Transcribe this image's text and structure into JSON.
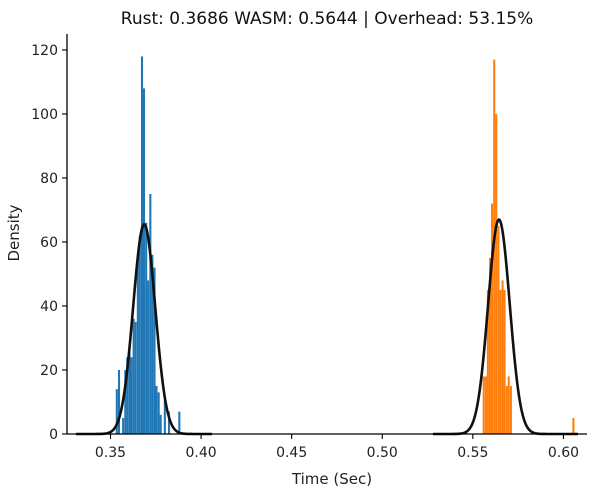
{
  "chart_data": {
    "type": "histogram",
    "title": "Rust: 0.3686 WASM: 0.5644 | Overhead: 53.15%",
    "xlabel": "Time (Sec)",
    "ylabel": "Density",
    "xlim": [
      0.326,
      0.613
    ],
    "ylim": [
      0,
      125
    ],
    "xticks": [
      0.35,
      0.4,
      0.45,
      0.5,
      0.55,
      0.6
    ],
    "xtick_labels": [
      "0.35",
      "0.40",
      "0.45",
      "0.50",
      "0.55",
      "0.60"
    ],
    "yticks": [
      0,
      20,
      40,
      60,
      80,
      100,
      120
    ],
    "ytick_labels": [
      "0",
      "20",
      "40",
      "60",
      "80",
      "100",
      "120"
    ],
    "grid": false,
    "series": [
      {
        "color": "#1f77b4",
        "bin_width": 0.00115,
        "bins": [
          {
            "x": 0.3535,
            "y": 14
          },
          {
            "x": 0.3547,
            "y": 20
          },
          {
            "x": 0.357,
            "y": 5
          },
          {
            "x": 0.3582,
            "y": 20
          },
          {
            "x": 0.3593,
            "y": 24
          },
          {
            "x": 0.3605,
            "y": 28
          },
          {
            "x": 0.3616,
            "y": 24
          },
          {
            "x": 0.3628,
            "y": 36
          },
          {
            "x": 0.3639,
            "y": 35
          },
          {
            "x": 0.3651,
            "y": 55
          },
          {
            "x": 0.3662,
            "y": 62
          },
          {
            "x": 0.3674,
            "y": 118
          },
          {
            "x": 0.3685,
            "y": 108
          },
          {
            "x": 0.3697,
            "y": 66
          },
          {
            "x": 0.3708,
            "y": 48
          },
          {
            "x": 0.372,
            "y": 75
          },
          {
            "x": 0.3731,
            "y": 56
          },
          {
            "x": 0.3743,
            "y": 52
          },
          {
            "x": 0.3754,
            "y": 15
          },
          {
            "x": 0.3766,
            "y": 13
          },
          {
            "x": 0.3777,
            "y": 6
          },
          {
            "x": 0.38,
            "y": 12
          },
          {
            "x": 0.3823,
            "y": 7
          },
          {
            "x": 0.388,
            "y": 7
          }
        ]
      },
      {
        "color": "#ff7f0e",
        "bin_width": 0.00115,
        "bins": [
          {
            "x": 0.556,
            "y": 18
          },
          {
            "x": 0.5572,
            "y": 18
          },
          {
            "x": 0.5583,
            "y": 45
          },
          {
            "x": 0.5595,
            "y": 55
          },
          {
            "x": 0.5606,
            "y": 72
          },
          {
            "x": 0.5618,
            "y": 117
          },
          {
            "x": 0.5629,
            "y": 100
          },
          {
            "x": 0.5641,
            "y": 65
          },
          {
            "x": 0.5652,
            "y": 45
          },
          {
            "x": 0.5664,
            "y": 48
          },
          {
            "x": 0.5675,
            "y": 45
          },
          {
            "x": 0.5687,
            "y": 15
          },
          {
            "x": 0.5698,
            "y": 18
          },
          {
            "x": 0.571,
            "y": 15
          },
          {
            "x": 0.6055,
            "y": 5
          }
        ]
      }
    ],
    "fit_curves": [
      {
        "color": "#111111",
        "mean": 0.3686,
        "peak": 65.5,
        "x_range": [
          0.331,
          0.406
        ]
      },
      {
        "color": "#111111",
        "mean": 0.5644,
        "peak": 67.0,
        "x_range": [
          0.528,
          0.608
        ]
      }
    ]
  }
}
